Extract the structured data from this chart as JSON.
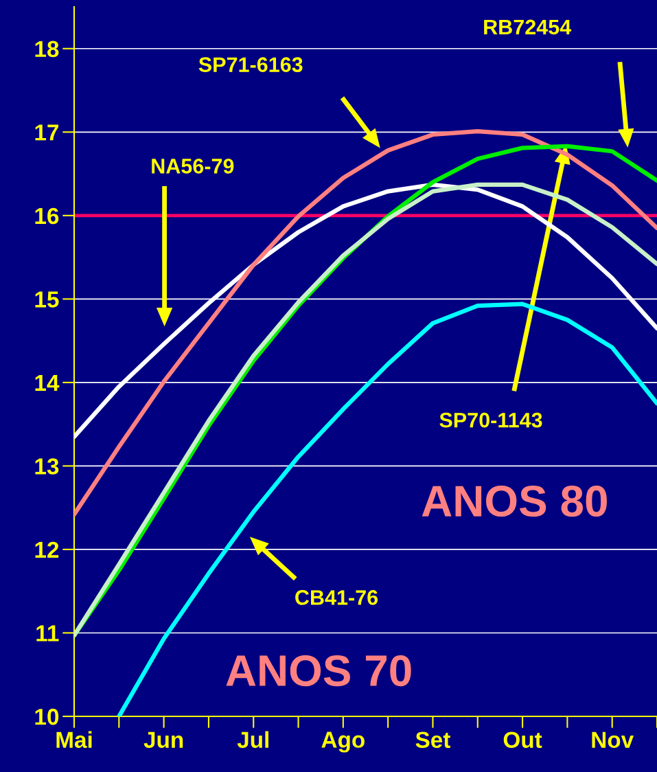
{
  "chart_data": {
    "type": "line",
    "categories": [
      "Mai",
      null,
      "Jun",
      null,
      "Jul",
      null,
      "Ago",
      null,
      "Set",
      null,
      "Out",
      null,
      "Nov",
      null
    ],
    "series": [
      {
        "color": "#ffffff",
        "values": [
          13.35,
          13.95,
          14.46,
          14.95,
          15.41,
          15.8,
          16.11,
          16.29,
          16.37,
          16.31,
          16.11,
          15.74,
          15.25,
          14.65
        ]
      },
      {
        "color": "#ff8080",
        "values": [
          12.42,
          13.23,
          14.01,
          14.71,
          15.41,
          15.99,
          16.45,
          16.78,
          16.97,
          17.01,
          16.97,
          16.73,
          16.36,
          15.85
        ]
      },
      {
        "color": "#00ee00",
        "values": [
          10.97,
          11.75,
          12.61,
          13.48,
          14.26,
          14.92,
          15.49,
          15.99,
          16.4,
          16.68,
          16.81,
          16.83,
          16.77,
          16.42
        ]
      },
      {
        "color": "#c8f0c8",
        "values": [
          10.97,
          11.82,
          12.68,
          13.54,
          14.32,
          14.96,
          15.52,
          15.96,
          16.29,
          16.37,
          16.37,
          16.19,
          15.86,
          15.42
        ]
      },
      {
        "color": "#00ffff",
        "values": [
          null,
          10.0,
          10.93,
          11.71,
          12.45,
          13.11,
          13.68,
          14.22,
          14.71,
          14.92,
          14.94,
          14.75,
          14.42,
          13.75
        ]
      }
    ],
    "ylim": [
      10,
      18.5
    ],
    "yticks": [
      10,
      11,
      12,
      13,
      14,
      15,
      16,
      17,
      18
    ],
    "grid": "y",
    "legend": false,
    "ref_lines": [
      {
        "axis": "y",
        "value": 16,
        "color": "#ff0066"
      }
    ],
    "annotations": [
      "SP71-6163",
      "NA56-79",
      "RB72454",
      "SP70-1143",
      "CB41-76",
      "ANOS 80",
      "ANOS 70"
    ]
  }
}
